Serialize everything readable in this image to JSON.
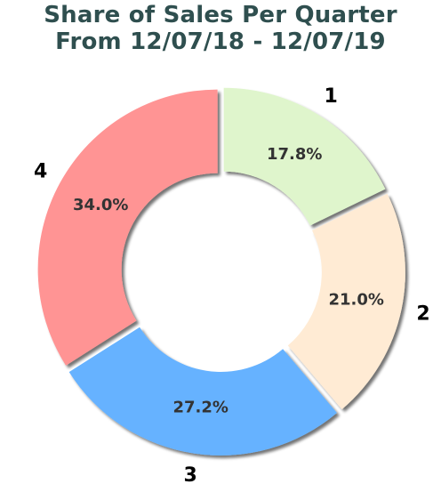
{
  "chart_data": {
    "type": "pie",
    "title": [
      "Share of Sales Per Quarter",
      "From 12/07/18 - 12/07/19"
    ],
    "categories": [
      "1",
      "2",
      "3",
      "4"
    ],
    "values": [
      17.8,
      21.0,
      27.2,
      34.0
    ],
    "value_labels": [
      "17.8%",
      "21.0%",
      "27.2%",
      "34.0%"
    ],
    "colors": [
      "#dff5cc",
      "#ffebd4",
      "#66b2ff",
      "#ff9494"
    ],
    "start_angle_deg": 90,
    "direction": "clockwise",
    "donut": true,
    "exploded": true,
    "shadow": true,
    "legend": "none"
  }
}
